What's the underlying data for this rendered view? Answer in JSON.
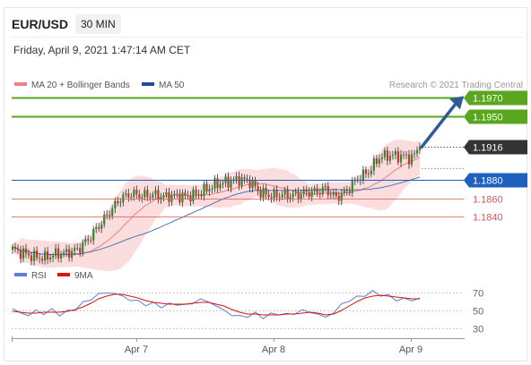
{
  "header": {
    "pair": "EUR/USD",
    "timeframe": "30 MIN",
    "datetime": "Friday, April 9, 2021 1:47:14 AM CET"
  },
  "legend": {
    "ma20_label": "MA 20 + Bollinger Bands",
    "ma50_label": "MA 50",
    "credit": "Research © 2021 Trading Central",
    "rsi_label": "RSI",
    "ma9_label": "9MA"
  },
  "colors": {
    "candle_up": "#2e8b2e",
    "candle_down": "#c0392b",
    "ma20": "#f08080",
    "bands_fill": "#fcd7d7",
    "ma50": "#4f74b3",
    "resistance": "#5aa61f",
    "support": "#1f5fbf",
    "lower_support": "#e05555",
    "last_price": "#333333",
    "arrow": "#2f5c99",
    "rsi": "#5b7fd6",
    "rsi_ma": "#dd1111"
  },
  "chart_data": [
    {
      "type": "candlestick",
      "title": "EUR/USD 30 MIN",
      "x_ticks": [
        "Apr 7",
        "Apr 8",
        "Apr 9"
      ],
      "ylim": [
        1.18,
        1.1985
      ],
      "price_path": [
        [
          0,
          1.1804
        ],
        [
          4,
          1.18
        ],
        [
          8,
          1.1796
        ],
        [
          12,
          1.1795
        ],
        [
          16,
          1.1799
        ],
        [
          20,
          1.18
        ],
        [
          24,
          1.1804
        ],
        [
          28,
          1.1815
        ],
        [
          32,
          1.183
        ],
        [
          36,
          1.1845
        ],
        [
          40,
          1.186
        ],
        [
          44,
          1.1865
        ],
        [
          48,
          1.1863
        ],
        [
          52,
          1.1864
        ],
        [
          56,
          1.1862
        ],
        [
          60,
          1.1863
        ],
        [
          64,
          1.1862
        ],
        [
          68,
          1.1864
        ],
        [
          72,
          1.187
        ],
        [
          76,
          1.1876
        ],
        [
          80,
          1.1878
        ],
        [
          84,
          1.1881
        ],
        [
          88,
          1.1878
        ],
        [
          92,
          1.1866
        ],
        [
          96,
          1.1863
        ],
        [
          100,
          1.1864
        ],
        [
          104,
          1.1863
        ],
        [
          108,
          1.1866
        ],
        [
          112,
          1.1867
        ],
        [
          116,
          1.187
        ],
        [
          120,
          1.1861
        ],
        [
          124,
          1.1868
        ],
        [
          128,
          1.1882
        ],
        [
          132,
          1.1889
        ],
        [
          136,
          1.1905
        ],
        [
          140,
          1.1907
        ],
        [
          144,
          1.1906
        ],
        [
          148,
          1.1904
        ],
        [
          151,
          1.1916
        ]
      ],
      "levels": [
        {
          "label": "1.1970",
          "value": 1.197,
          "kind": "resistance"
        },
        {
          "label": "1.1950",
          "value": 1.195,
          "kind": "resistance"
        },
        {
          "label": "1.1916",
          "value": 1.1916,
          "kind": "last"
        },
        {
          "label": "1.1880",
          "value": 1.188,
          "kind": "support"
        },
        {
          "label": "1.1860",
          "value": 1.186,
          "kind": "lower_support"
        },
        {
          "label": "1.1840",
          "value": 1.184,
          "kind": "lower_support"
        }
      ],
      "target_arrow": {
        "from": 1.1916,
        "to": 1.197
      }
    },
    {
      "type": "line",
      "ylim": [
        25,
        75
      ],
      "y_ticks": [
        70,
        50,
        30
      ],
      "x_ticks": [
        "Apr 7",
        "Apr 8",
        "Apr 9"
      ],
      "series": [
        {
          "name": "RSI",
          "values": [
            52,
            47,
            45,
            49,
            47,
            50,
            46,
            48,
            52,
            58,
            63,
            68,
            70,
            69,
            66,
            62,
            60,
            57,
            57,
            55,
            56,
            58,
            55,
            59,
            62,
            60,
            55,
            50,
            45,
            43,
            44,
            46,
            43,
            45,
            47,
            45,
            47,
            50,
            48,
            46,
            42,
            48,
            56,
            62,
            64,
            68,
            70,
            68,
            66,
            62,
            63,
            61,
            64
          ]
        },
        {
          "name": "9MA",
          "values": [
            49,
            48,
            47,
            47,
            48,
            48,
            48,
            49,
            51,
            54,
            58,
            63,
            66,
            68,
            68,
            66,
            64,
            61,
            59,
            58,
            57,
            57,
            57,
            58,
            59,
            59,
            57,
            55,
            51,
            48,
            46,
            46,
            45,
            45,
            45,
            46,
            46,
            47,
            48,
            47,
            45,
            46,
            50,
            55,
            60,
            64,
            66,
            67,
            66,
            65,
            64,
            63,
            63
          ]
        }
      ]
    }
  ]
}
